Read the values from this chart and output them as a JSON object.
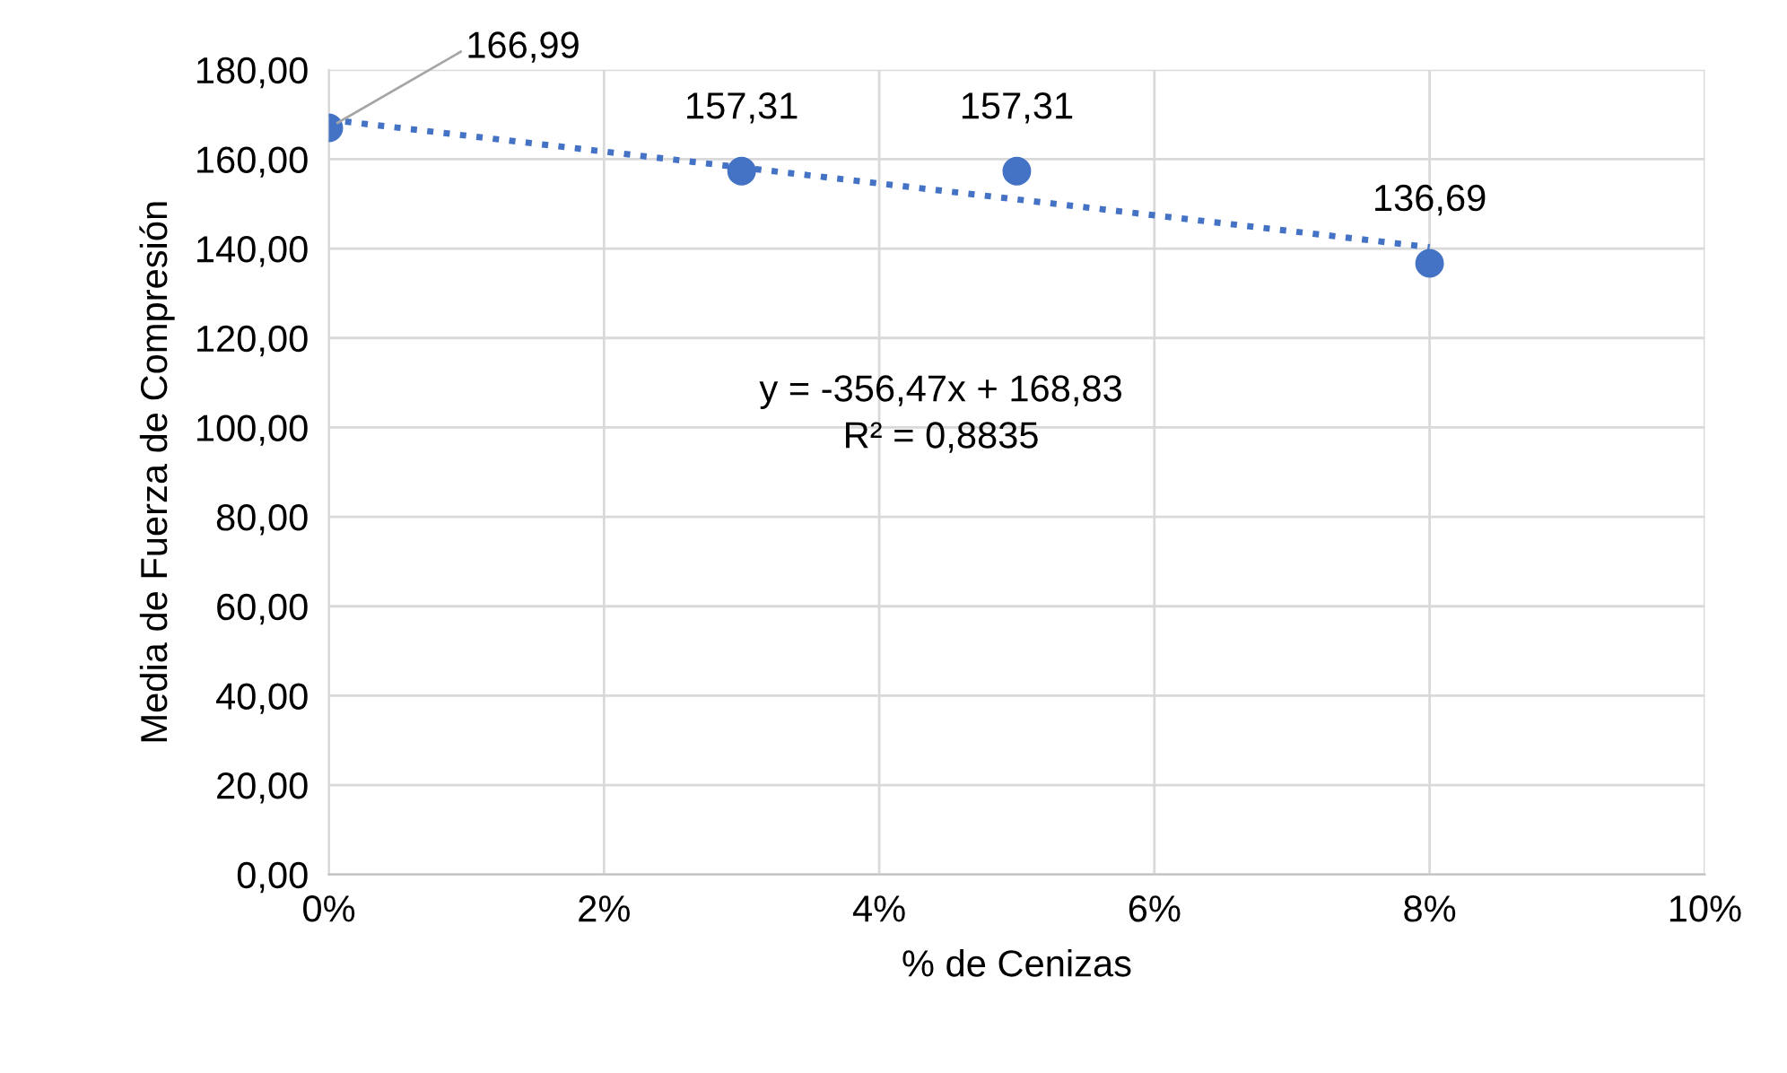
{
  "chart_data": {
    "type": "scatter",
    "xlabel": "% de Cenizas",
    "ylabel": "Media de Fuerza de Compresión",
    "x": [
      0,
      0.03,
      0.05,
      0.08
    ],
    "series": [
      {
        "color": "#4472c4",
        "values": [
          166.99,
          157.31,
          157.31,
          136.69
        ],
        "value_labels": [
          "166,99",
          "157,31",
          "157,31",
          "136,69"
        ],
        "marker": "circle"
      },
      {
        "type": "line",
        "color": "#4472c4",
        "x": [
          0,
          0.08
        ],
        "values": [
          168.83,
          140.31
        ],
        "line_style": "dotted",
        "marker": "none"
      }
    ],
    "annotations": [
      "y = -356,47x + 168,83",
      "R² = 0,8835"
    ],
    "xlim": [
      0,
      0.1
    ],
    "xticks": [
      {
        "value": 0,
        "label": "0%"
      },
      {
        "value": 0.02,
        "label": "2%"
      },
      {
        "value": 0.04,
        "label": "4%"
      },
      {
        "value": 0.06,
        "label": "6%"
      },
      {
        "value": 0.08,
        "label": "8%"
      },
      {
        "value": 0.1,
        "label": "10%"
      }
    ],
    "ylim": [
      0,
      180
    ],
    "yticks": [
      {
        "value": 0,
        "label": "0,00"
      },
      {
        "value": 20,
        "label": "20,00"
      },
      {
        "value": 40,
        "label": "40,00"
      },
      {
        "value": 60,
        "label": "60,00"
      },
      {
        "value": 80,
        "label": "80,00"
      },
      {
        "value": 100,
        "label": "100,00"
      },
      {
        "value": 120,
        "label": "120,00"
      },
      {
        "value": 140,
        "label": "140,00"
      },
      {
        "value": 160,
        "label": "160,00"
      },
      {
        "value": 180,
        "label": "180,00"
      }
    ],
    "grid": true,
    "legend": false
  }
}
